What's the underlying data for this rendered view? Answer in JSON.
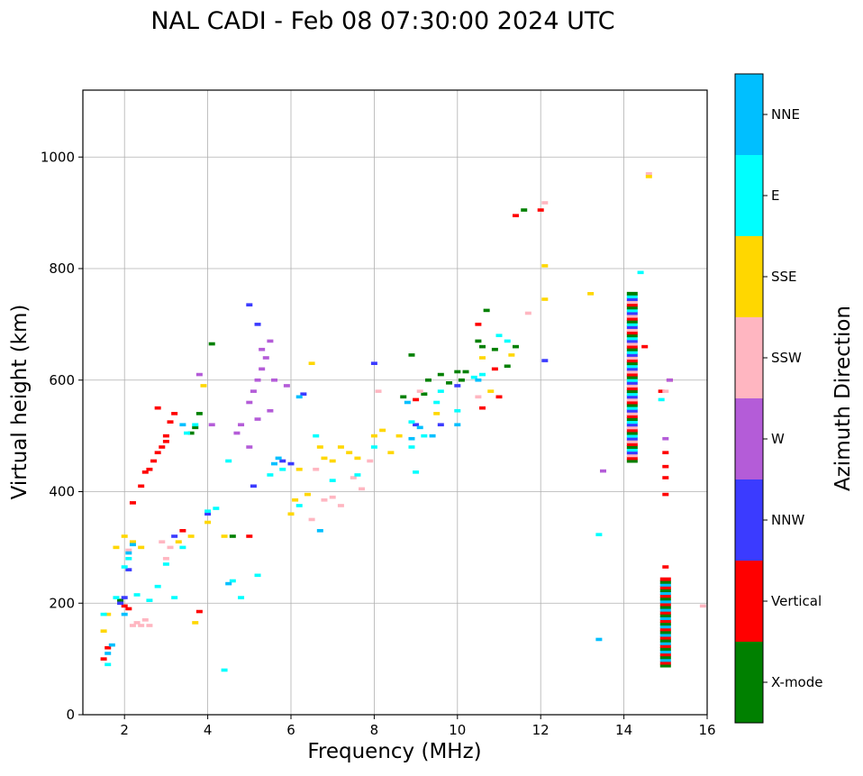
{
  "chart_data": {
    "type": "scatter",
    "title": "NAL CADI - Feb 08 07:30:00 2024 UTC",
    "xlabel": "Frequency (MHz)",
    "ylabel": "Virtual height (km)",
    "xlim": [
      1,
      16
    ],
    "ylim": [
      0,
      1120
    ],
    "xticks": [
      "2",
      "4",
      "6",
      "8",
      "10",
      "12",
      "14",
      "16"
    ],
    "yticks": [
      "0",
      "200",
      "400",
      "600",
      "800",
      "1000"
    ],
    "grid": true,
    "colorbar": {
      "label": "Azimuth Direction",
      "categories": [
        {
          "name": "X-mode",
          "color": "#008000"
        },
        {
          "name": "Vertical",
          "color": "#ff0000"
        },
        {
          "name": "NNW",
          "color": "#3b3bff"
        },
        {
          "name": "W",
          "color": "#b45cd8"
        },
        {
          "name": "SSW",
          "color": "#ffb6c1"
        },
        {
          "name": "SSE",
          "color": "#ffd700"
        },
        {
          "name": "E",
          "color": "#00ffff"
        },
        {
          "name": "NNE",
          "color": "#00bfff"
        }
      ]
    },
    "series": [
      {
        "name": "X-mode",
        "points": [
          [
            3.7,
            515
          ],
          [
            3.8,
            540
          ],
          [
            4.1,
            665
          ],
          [
            4.6,
            320
          ],
          [
            8.7,
            570
          ],
          [
            8.9,
            645
          ],
          [
            9.3,
            600
          ],
          [
            9.6,
            610
          ],
          [
            9.8,
            595
          ],
          [
            10.0,
            615
          ],
          [
            10.2,
            615
          ],
          [
            10.7,
            725
          ],
          [
            10.5,
            670
          ],
          [
            10.6,
            660
          ],
          [
            10.9,
            655
          ],
          [
            11.2,
            625
          ],
          [
            11.4,
            660
          ],
          [
            11.6,
            905
          ],
          [
            3.6,
            505
          ],
          [
            1.9,
            205
          ],
          [
            9.2,
            575
          ],
          [
            10.1,
            600
          ]
        ]
      },
      {
        "name": "Vertical",
        "points": [
          [
            1.5,
            100
          ],
          [
            1.6,
            120
          ],
          [
            2.0,
            195
          ],
          [
            2.2,
            380
          ],
          [
            2.4,
            410
          ],
          [
            2.5,
            435
          ],
          [
            2.6,
            440
          ],
          [
            2.7,
            455
          ],
          [
            2.8,
            470
          ],
          [
            2.9,
            480
          ],
          [
            3.0,
            490
          ],
          [
            3.1,
            525
          ],
          [
            3.2,
            540
          ],
          [
            3.0,
            500
          ],
          [
            2.8,
            550
          ],
          [
            3.4,
            330
          ],
          [
            3.8,
            185
          ],
          [
            5.0,
            320
          ],
          [
            9.0,
            565
          ],
          [
            10.5,
            700
          ],
          [
            10.6,
            550
          ],
          [
            10.9,
            620
          ],
          [
            11.0,
            570
          ],
          [
            11.4,
            895
          ],
          [
            12.0,
            905
          ],
          [
            14.5,
            660
          ],
          [
            15.0,
            470
          ],
          [
            15.0,
            445
          ],
          [
            15.0,
            425
          ],
          [
            15.0,
            395
          ],
          [
            15.0,
            265
          ],
          [
            15.1,
            600
          ],
          [
            14.9,
            580
          ],
          [
            2.1,
            190
          ]
        ]
      },
      {
        "name": "NNW",
        "points": [
          [
            5.0,
            735
          ],
          [
            5.2,
            700
          ],
          [
            5.8,
            455
          ],
          [
            5.1,
            410
          ],
          [
            6.3,
            575
          ],
          [
            8.0,
            630
          ],
          [
            9.0,
            520
          ],
          [
            9.6,
            520
          ],
          [
            10.0,
            590
          ],
          [
            12.1,
            635
          ],
          [
            1.9,
            200
          ],
          [
            2.0,
            210
          ],
          [
            2.1,
            260
          ],
          [
            3.2,
            320
          ],
          [
            4.0,
            360
          ],
          [
            6.0,
            450
          ]
        ]
      },
      {
        "name": "W",
        "points": [
          [
            3.8,
            610
          ],
          [
            4.1,
            520
          ],
          [
            4.7,
            505
          ],
          [
            4.8,
            520
          ],
          [
            5.0,
            560
          ],
          [
            5.1,
            580
          ],
          [
            5.2,
            600
          ],
          [
            5.3,
            620
          ],
          [
            5.4,
            640
          ],
          [
            5.5,
            670
          ],
          [
            5.6,
            600
          ],
          [
            5.2,
            530
          ],
          [
            5.0,
            480
          ],
          [
            5.5,
            545
          ],
          [
            5.3,
            655
          ],
          [
            5.9,
            590
          ],
          [
            13.5,
            437
          ],
          [
            15.0,
            495
          ],
          [
            15.1,
            600
          ]
        ]
      },
      {
        "name": "SSW",
        "points": [
          [
            2.2,
            160
          ],
          [
            2.3,
            165
          ],
          [
            2.4,
            160
          ],
          [
            2.5,
            170
          ],
          [
            2.6,
            160
          ],
          [
            2.9,
            310
          ],
          [
            3.1,
            300
          ],
          [
            3.0,
            280
          ],
          [
            2.1,
            295
          ],
          [
            6.6,
            440
          ],
          [
            6.8,
            385
          ],
          [
            7.0,
            390
          ],
          [
            7.2,
            375
          ],
          [
            7.5,
            425
          ],
          [
            7.7,
            405
          ],
          [
            7.9,
            455
          ],
          [
            8.1,
            580
          ],
          [
            9.1,
            580
          ],
          [
            10.5,
            570
          ],
          [
            11.7,
            720
          ],
          [
            12.1,
            918
          ],
          [
            14.6,
            970
          ],
          [
            15.0,
            580
          ],
          [
            15.9,
            195
          ],
          [
            6.5,
            350
          ]
        ]
      },
      {
        "name": "SSE",
        "points": [
          [
            1.5,
            150
          ],
          [
            1.6,
            180
          ],
          [
            1.8,
            300
          ],
          [
            2.0,
            320
          ],
          [
            2.2,
            310
          ],
          [
            2.4,
            300
          ],
          [
            3.3,
            310
          ],
          [
            3.6,
            320
          ],
          [
            3.7,
            165
          ],
          [
            3.9,
            590
          ],
          [
            4.0,
            345
          ],
          [
            4.4,
            320
          ],
          [
            6.0,
            360
          ],
          [
            6.1,
            385
          ],
          [
            6.2,
            440
          ],
          [
            6.5,
            630
          ],
          [
            6.7,
            480
          ],
          [
            6.8,
            460
          ],
          [
            7.0,
            455
          ],
          [
            7.2,
            480
          ],
          [
            7.4,
            470
          ],
          [
            7.6,
            460
          ],
          [
            8.0,
            500
          ],
          [
            8.2,
            510
          ],
          [
            8.4,
            470
          ],
          [
            8.6,
            500
          ],
          [
            9.5,
            540
          ],
          [
            10.6,
            640
          ],
          [
            10.8,
            580
          ],
          [
            11.3,
            645
          ],
          [
            12.1,
            805
          ],
          [
            12.1,
            745
          ],
          [
            13.2,
            755
          ],
          [
            14.6,
            965
          ],
          [
            6.4,
            395
          ]
        ]
      },
      {
        "name": "E",
        "points": [
          [
            1.5,
            180
          ],
          [
            1.6,
            90
          ],
          [
            1.8,
            210
          ],
          [
            2.0,
            265
          ],
          [
            2.1,
            280
          ],
          [
            2.3,
            215
          ],
          [
            2.6,
            205
          ],
          [
            2.8,
            230
          ],
          [
            3.0,
            270
          ],
          [
            3.2,
            210
          ],
          [
            3.5,
            505
          ],
          [
            3.7,
            520
          ],
          [
            4.0,
            365
          ],
          [
            4.2,
            370
          ],
          [
            4.4,
            80
          ],
          [
            4.5,
            455
          ],
          [
            4.6,
            240
          ],
          [
            4.8,
            210
          ],
          [
            5.2,
            250
          ],
          [
            5.5,
            430
          ],
          [
            5.8,
            440
          ],
          [
            6.2,
            375
          ],
          [
            6.6,
            500
          ],
          [
            7.0,
            420
          ],
          [
            7.6,
            430
          ],
          [
            8.0,
            480
          ],
          [
            8.9,
            480
          ],
          [
            8.9,
            525
          ],
          [
            9.0,
            435
          ],
          [
            9.2,
            500
          ],
          [
            9.5,
            560
          ],
          [
            9.6,
            580
          ],
          [
            10.0,
            545
          ],
          [
            10.4,
            605
          ],
          [
            10.6,
            610
          ],
          [
            11.0,
            680
          ],
          [
            11.2,
            670
          ],
          [
            14.4,
            793
          ],
          [
            14.9,
            565
          ],
          [
            13.4,
            323
          ],
          [
            3.4,
            300
          ]
        ]
      },
      {
        "name": "NNE",
        "points": [
          [
            1.6,
            110
          ],
          [
            1.7,
            125
          ],
          [
            2.0,
            180
          ],
          [
            2.1,
            290
          ],
          [
            2.2,
            305
          ],
          [
            3.4,
            520
          ],
          [
            4.5,
            235
          ],
          [
            5.6,
            450
          ],
          [
            5.7,
            460
          ],
          [
            6.2,
            570
          ],
          [
            6.7,
            330
          ],
          [
            8.9,
            495
          ],
          [
            9.1,
            515
          ],
          [
            9.4,
            500
          ],
          [
            10.0,
            520
          ],
          [
            10.5,
            600
          ],
          [
            13.4,
            135
          ],
          [
            15.0,
            95
          ],
          [
            8.8,
            560
          ]
        ]
      }
    ],
    "column_14.2": {
      "x": 14.2,
      "y_range": [
        455,
        755
      ],
      "colors": [
        "X-mode",
        "Vertical",
        "SSW",
        "NNW",
        "E"
      ]
    },
    "column_15.0": {
      "x": 15.0,
      "y_range": [
        88,
        245
      ],
      "colors": [
        "X-mode",
        "Vertical",
        "NNE"
      ]
    }
  }
}
